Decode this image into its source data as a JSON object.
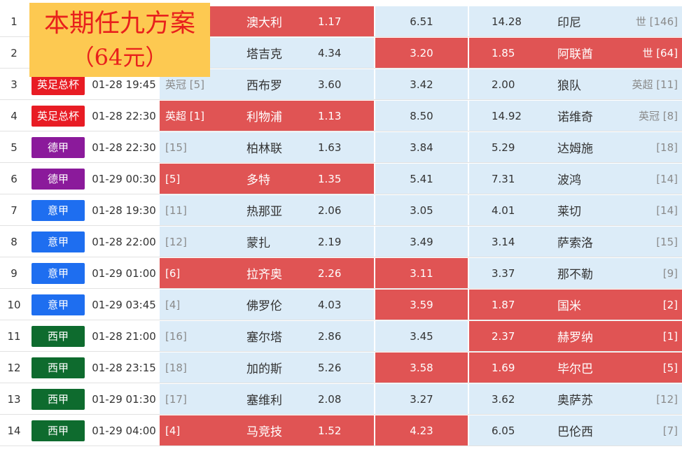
{
  "promo": {
    "title": "本期任九方案",
    "price": "（64元）"
  },
  "colors": {
    "hot": "#e05454",
    "cell": "#dcecf8",
    "promo_bg": "#fdc951",
    "promo_text": "#e8201c"
  },
  "leagues": {
    "英足总杯": "#e81c24",
    "德甲": "#8b1a9b",
    "意甲": "#1e6ef0",
    "西甲": "#0e6b2e",
    "世预赛": "#e81c24"
  },
  "rows": [
    {
      "no": "1",
      "league": "",
      "time": "",
      "home_rank": "",
      "home": "澳大利",
      "home_odds": "1.17",
      "draw_odds": "6.51",
      "away_odds": "14.28",
      "away": "印尼",
      "away_rank": "世 [146]",
      "hot": [
        true,
        false,
        false
      ]
    },
    {
      "no": "2",
      "league": "",
      "time": "",
      "home_rank": "",
      "home": "塔吉克",
      "home_odds": "4.34",
      "draw_odds": "3.20",
      "away_odds": "1.85",
      "away": "阿联酋",
      "away_rank": "世 [64]",
      "hot": [
        false,
        true,
        true
      ]
    },
    {
      "no": "3",
      "league": "英足总杯",
      "time": "01-28 19:45",
      "home_rank": "英冠 [5]",
      "home": "西布罗",
      "home_odds": "3.60",
      "draw_odds": "3.42",
      "away_odds": "2.00",
      "away": "狼队",
      "away_rank": "英超 [11]",
      "hot": [
        false,
        false,
        false
      ]
    },
    {
      "no": "4",
      "league": "英足总杯",
      "time": "01-28 22:30",
      "home_rank": "英超 [1]",
      "home": "利物浦",
      "home_odds": "1.13",
      "draw_odds": "8.50",
      "away_odds": "14.92",
      "away": "诺维奇",
      "away_rank": "英冠 [8]",
      "hot": [
        true,
        false,
        false
      ]
    },
    {
      "no": "5",
      "league": "德甲",
      "time": "01-28 22:30",
      "home_rank": "[15]",
      "home": "柏林联",
      "home_odds": "1.63",
      "draw_odds": "3.84",
      "away_odds": "5.29",
      "away": "达姆施",
      "away_rank": "[18]",
      "hot": [
        false,
        false,
        false
      ]
    },
    {
      "no": "6",
      "league": "德甲",
      "time": "01-29 00:30",
      "home_rank": "[5]",
      "home": "多特",
      "home_odds": "1.35",
      "draw_odds": "5.41",
      "away_odds": "7.31",
      "away": "波鸿",
      "away_rank": "[14]",
      "hot": [
        true,
        false,
        false
      ]
    },
    {
      "no": "7",
      "league": "意甲",
      "time": "01-28 19:30",
      "home_rank": "[11]",
      "home": "热那亚",
      "home_odds": "2.06",
      "draw_odds": "3.05",
      "away_odds": "4.01",
      "away": "莱切",
      "away_rank": "[14]",
      "hot": [
        false,
        false,
        false
      ]
    },
    {
      "no": "8",
      "league": "意甲",
      "time": "01-28 22:00",
      "home_rank": "[12]",
      "home": "蒙扎",
      "home_odds": "2.19",
      "draw_odds": "3.49",
      "away_odds": "3.14",
      "away": "萨索洛",
      "away_rank": "[15]",
      "hot": [
        false,
        false,
        false
      ]
    },
    {
      "no": "9",
      "league": "意甲",
      "time": "01-29 01:00",
      "home_rank": "[6]",
      "home": "拉齐奥",
      "home_odds": "2.26",
      "draw_odds": "3.11",
      "away_odds": "3.37",
      "away": "那不勒",
      "away_rank": "[9]",
      "hot": [
        true,
        true,
        false
      ]
    },
    {
      "no": "10",
      "league": "意甲",
      "time": "01-29 03:45",
      "home_rank": "[4]",
      "home": "佛罗伦",
      "home_odds": "4.03",
      "draw_odds": "3.59",
      "away_odds": "1.87",
      "away": "国米",
      "away_rank": "[2]",
      "hot": [
        false,
        true,
        true
      ]
    },
    {
      "no": "11",
      "league": "西甲",
      "time": "01-28 21:00",
      "home_rank": "[16]",
      "home": "塞尔塔",
      "home_odds": "2.86",
      "draw_odds": "3.45",
      "away_odds": "2.37",
      "away": "赫罗纳",
      "away_rank": "[1]",
      "hot": [
        false,
        false,
        true
      ]
    },
    {
      "no": "12",
      "league": "西甲",
      "time": "01-28 23:15",
      "home_rank": "[18]",
      "home": "加的斯",
      "home_odds": "5.26",
      "draw_odds": "3.58",
      "away_odds": "1.69",
      "away": "毕尔巴",
      "away_rank": "[5]",
      "hot": [
        false,
        true,
        true
      ]
    },
    {
      "no": "13",
      "league": "西甲",
      "time": "01-29 01:30",
      "home_rank": "[17]",
      "home": "塞维利",
      "home_odds": "2.08",
      "draw_odds": "3.27",
      "away_odds": "3.62",
      "away": "奥萨苏",
      "away_rank": "[12]",
      "hot": [
        false,
        false,
        false
      ]
    },
    {
      "no": "14",
      "league": "西甲",
      "time": "01-29 04:00",
      "home_rank": "[4]",
      "home": "马竞技",
      "home_odds": "1.52",
      "draw_odds": "4.23",
      "away_odds": "6.05",
      "away": "巴伦西",
      "away_rank": "[7]",
      "hot": [
        true,
        true,
        false
      ]
    }
  ]
}
